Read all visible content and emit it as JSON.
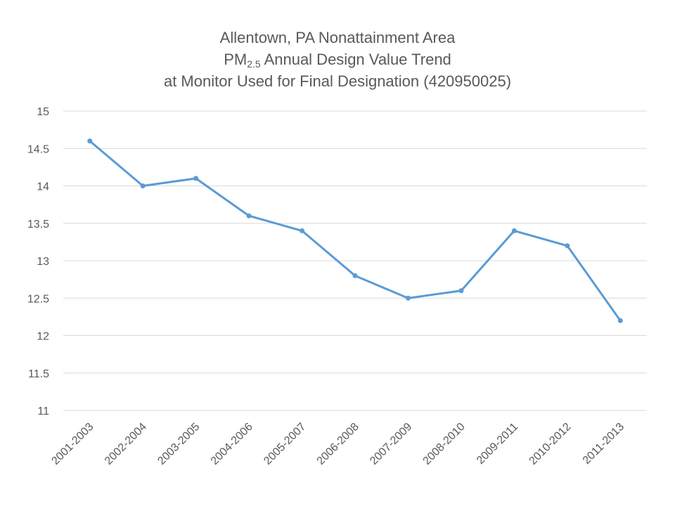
{
  "chart_data": {
    "type": "line",
    "title": {
      "line1": "Allentown, PA Nonattainment Area",
      "line2_prefix": "PM",
      "line2_sub": "2.5",
      "line2_suffix": " Annual Design Value Trend",
      "line3": "at Monitor Used for Final Designation (420950025)"
    },
    "xlabel": "",
    "ylabel": "",
    "categories": [
      "2001-2003",
      "2002-2004",
      "2003-2005",
      "2004-2006",
      "2005-2007",
      "2006-2008",
      "2007-2009",
      "2008-2010",
      "2009-2011",
      "2010-2012",
      "2011-2013"
    ],
    "series": [
      {
        "values": [
          14.6,
          14.0,
          14.1,
          13.6,
          13.4,
          12.8,
          12.5,
          12.6,
          13.4,
          13.2,
          12.2
        ],
        "color": "#5b9bd5"
      }
    ],
    "ylim": [
      11,
      15
    ],
    "yticks": [
      "11",
      "11.5",
      "12",
      "12.5",
      "13",
      "13.5",
      "14",
      "14.5",
      "15"
    ],
    "grid": true,
    "legend": "none",
    "colors": {
      "gridline": "#d9d9d9",
      "text": "#595959"
    }
  }
}
